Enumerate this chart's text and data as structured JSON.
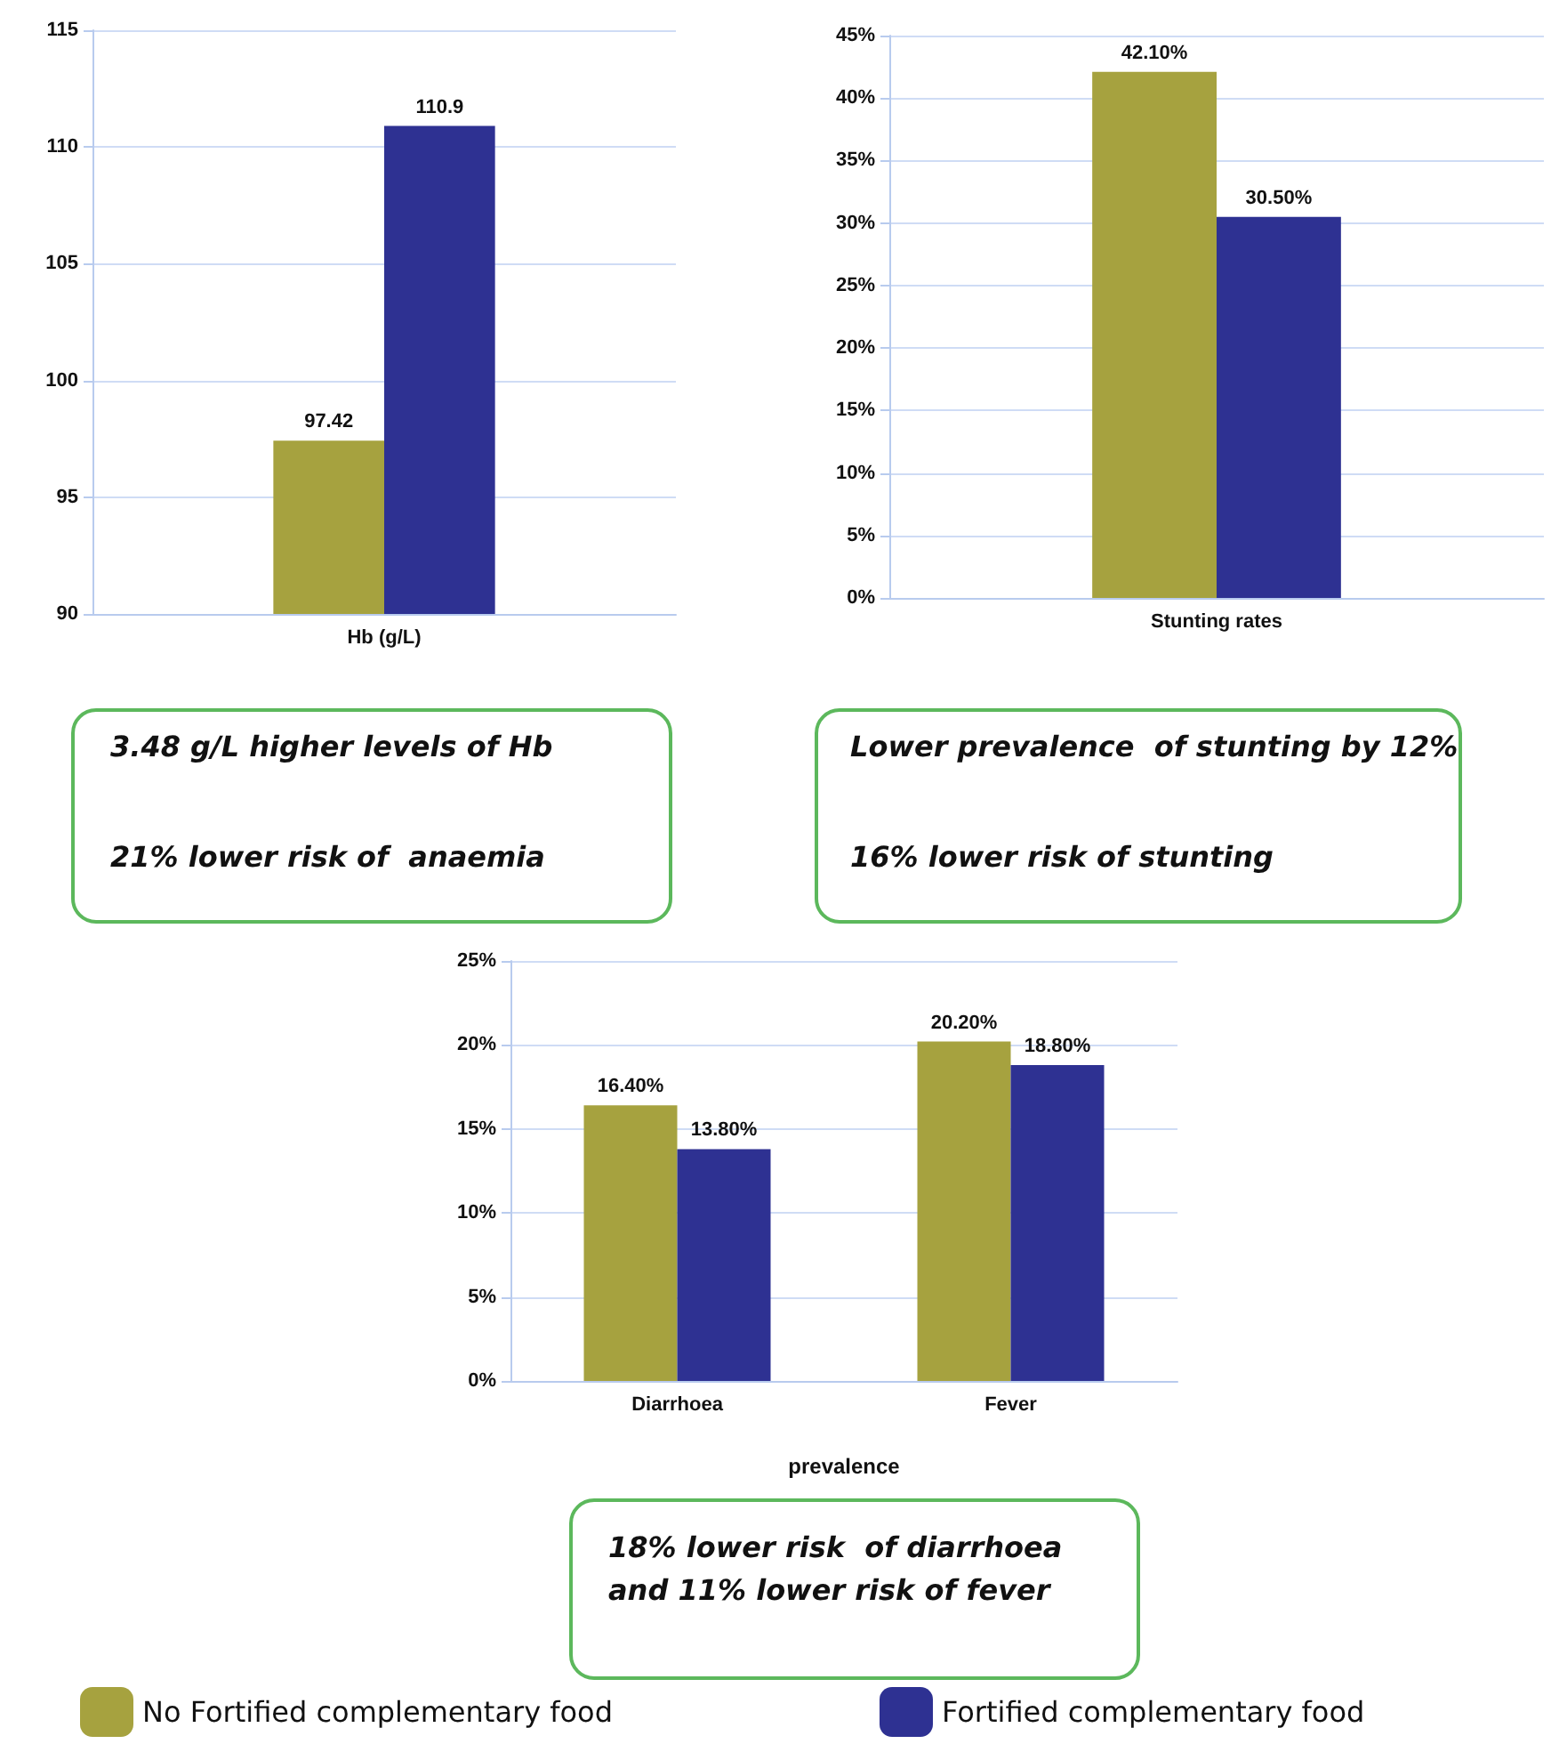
{
  "chart_data": [
    {
      "type": "bar",
      "categories": [
        "Hb (g/L)"
      ],
      "series": [
        {
          "color": "#a6a23f",
          "values": [
            97.42
          ]
        },
        {
          "color": "#2e3192",
          "values": [
            110.9
          ]
        }
      ],
      "ylim": [
        90,
        115
      ],
      "yticks": [
        90,
        95,
        100,
        105,
        110,
        115
      ],
      "grid": "y",
      "data_labels": true,
      "annotations": [
        "3.48 g/L higher levels of Hb",
        "21% lower risk of  anaemia"
      ]
    },
    {
      "type": "bar",
      "categories": [
        "Stunting rates"
      ],
      "series": [
        {
          "color": "#a6a23f",
          "values": [
            42.1
          ],
          "value_labels": [
            "42.10%"
          ]
        },
        {
          "color": "#2e3192",
          "values": [
            30.5
          ],
          "value_labels": [
            "30.50%"
          ]
        }
      ],
      "ylim": [
        0,
        45
      ],
      "yticks": [
        {
          "value": 0,
          "label": "0%"
        },
        {
          "value": 5,
          "label": "5%"
        },
        {
          "value": 10,
          "label": "10%"
        },
        {
          "value": 15,
          "label": "15%"
        },
        {
          "value": 20,
          "label": "20%"
        },
        {
          "value": 25,
          "label": "25%"
        },
        {
          "value": 30,
          "label": "30%"
        },
        {
          "value": 35,
          "label": "35%"
        },
        {
          "value": 40,
          "label": "40%"
        },
        {
          "value": 45,
          "label": "45%"
        }
      ],
      "grid": "y",
      "annotations": [
        "Lower prevalence  of stunting by 12%",
        "16% lower risk of stunting"
      ]
    },
    {
      "type": "bar",
      "categories": [
        "Diarrhoea",
        "Fever"
      ],
      "xlabel": "prevalence",
      "series": [
        {
          "name": "No Fortified complementary food",
          "color": "#a6a23f",
          "values": [
            16.4,
            20.2
          ],
          "value_labels": [
            "16.40%",
            "20.20%"
          ]
        },
        {
          "name": "Fortified complementary food",
          "color": "#2e3192",
          "values": [
            13.8,
            18.8
          ],
          "value_labels": [
            "13.80%",
            "18.80%"
          ]
        }
      ],
      "ylim": [
        0,
        25
      ],
      "yticks": [
        {
          "value": 0,
          "label": "0%"
        },
        {
          "value": 5,
          "label": "5%"
        },
        {
          "value": 10,
          "label": "10%"
        },
        {
          "value": 15,
          "label": "15%"
        },
        {
          "value": 20,
          "label": "20%"
        },
        {
          "value": 25,
          "label": "25%"
        }
      ],
      "grid": "y",
      "legend": "bottom",
      "annotations": [
        "18% lower risk  of diarrhoea",
        "and 11% lower risk of fever"
      ]
    }
  ]
}
